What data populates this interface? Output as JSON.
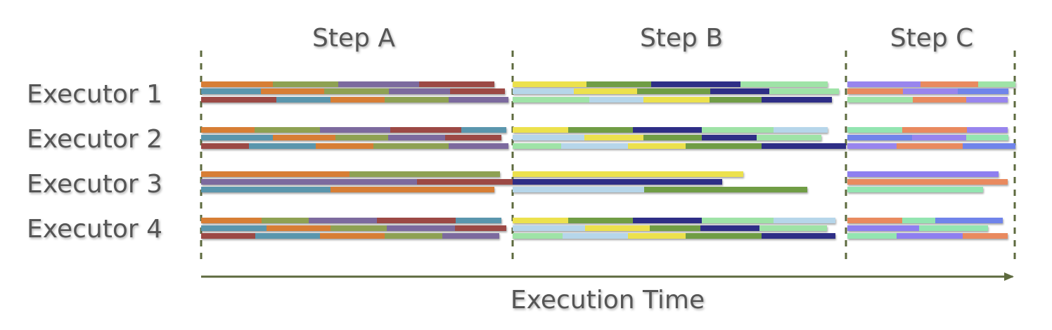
{
  "title": "",
  "steps": [
    {
      "label": "Step A"
    },
    {
      "label": "Step B"
    },
    {
      "label": "Step C"
    }
  ],
  "executors": [
    {
      "label": "Executor 1"
    },
    {
      "label": "Executor 2"
    },
    {
      "label": "Executor 3"
    },
    {
      "label": "Executor 4"
    }
  ],
  "axis": {
    "label": "Execution Time"
  },
  "colors": {
    "orange": "#d77e35",
    "olive": "#8ea152",
    "purple": "#7b6a9e",
    "brown": "#9c4a45",
    "teal": "#5a96ad",
    "yellow": "#ece14d",
    "green": "#6f9d45",
    "navy": "#2d2d86",
    "mint": "#9fe3a7",
    "skyblue": "#b6d6ea",
    "violet": "#9885ee",
    "salmon": "#e98a5f",
    "lavender": "#8e7ff0",
    "seafoam": "#93e5b1",
    "royal": "#6f84ea",
    "axis": "#5d6a3e",
    "text": "#555555"
  }
}
